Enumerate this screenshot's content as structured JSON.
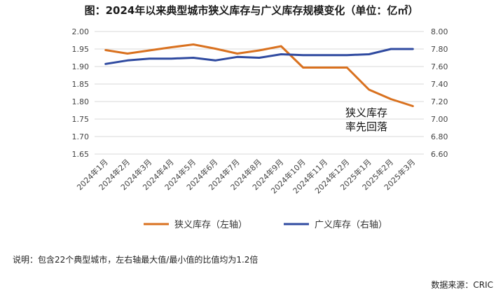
{
  "title": "图：2024年以来典型城市狭义库存与广义库存规模变化（单位：亿㎡）",
  "note": "说明：包含22个典型城市，左右轴最大值/最小值的比值均为1.2倍",
  "source": "数据来源：CRIC",
  "chart_data": {
    "type": "line",
    "categories": [
      "2024年1月",
      "2024年2月",
      "2024年3月",
      "2024年4月",
      "2024年5月",
      "2024年6月",
      "2024年7月",
      "2024年8月",
      "2024年9月",
      "2024年10月",
      "2024年11月",
      "2024年12月",
      "2025年1月",
      "2025年2月",
      "2025年3月"
    ],
    "left_axis": {
      "min": 1.65,
      "max": 2.0,
      "ticks": [
        "1.65",
        "1.70",
        "1.75",
        "1.80",
        "1.85",
        "1.90",
        "1.95",
        "2.00"
      ]
    },
    "right_axis": {
      "min": 6.6,
      "max": 8.0,
      "ticks": [
        "6.60",
        "6.80",
        "7.00",
        "7.20",
        "7.40",
        "7.60",
        "7.80",
        "8.00"
      ]
    },
    "series": [
      {
        "name": "狭义库存（左轴）",
        "axis": "left",
        "color": "#d9711f",
        "values": [
          1.947,
          1.937,
          1.946,
          1.955,
          1.963,
          1.951,
          1.937,
          1.946,
          1.958,
          1.897,
          1.897,
          1.897,
          1.834,
          1.807,
          1.787
        ]
      },
      {
        "name": "广义库存（右轴）",
        "axis": "right",
        "color": "#2f4aa0",
        "values": [
          7.63,
          7.67,
          7.69,
          7.69,
          7.7,
          7.67,
          7.71,
          7.7,
          7.74,
          7.73,
          7.73,
          7.73,
          7.74,
          7.8,
          7.8
        ]
      }
    ],
    "annotation": [
      "狭义库存",
      "率先回落"
    ],
    "grid": true,
    "legend_position": "bottom"
  }
}
